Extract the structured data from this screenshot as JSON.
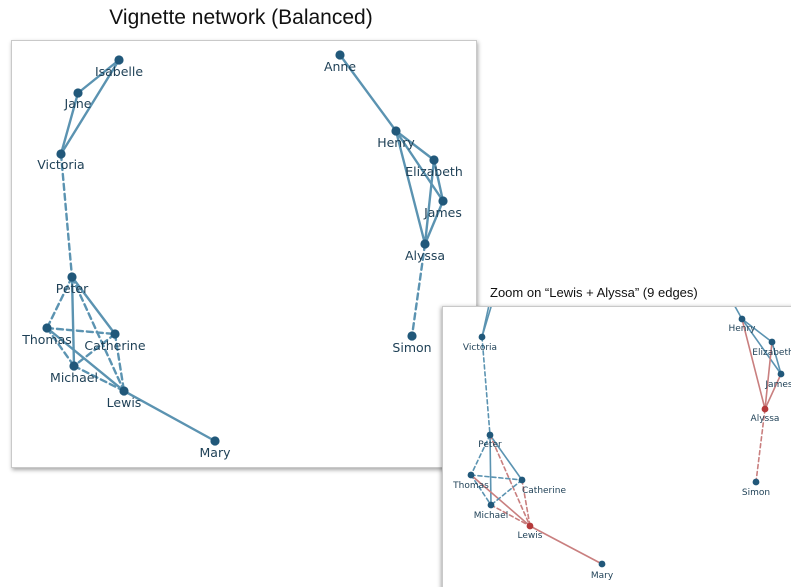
{
  "title": "Vignette network (Balanced)",
  "zoom_title": "Zoom on “Lewis + Alyssa” (9 edges)",
  "colors": {
    "edge": "#5b93b1",
    "node": "#21587a",
    "label": "#1d3f55",
    "highlight_edge": "#c97f7f",
    "highlight_node": "#b4393a"
  },
  "nodes": {
    "isabelle": "Isabelle",
    "jane": "Jane",
    "victoria": "Victoria",
    "peter": "Peter",
    "thomas": "Thomas",
    "catherine": "Catherine",
    "michael": "Michael",
    "lewis": "Lewis",
    "mary": "Mary",
    "anne": "Anne",
    "henry": "Henry",
    "elizabeth": "Elizabeth",
    "james": "James",
    "alyssa": "Alyssa",
    "simon": "Simon"
  }
}
